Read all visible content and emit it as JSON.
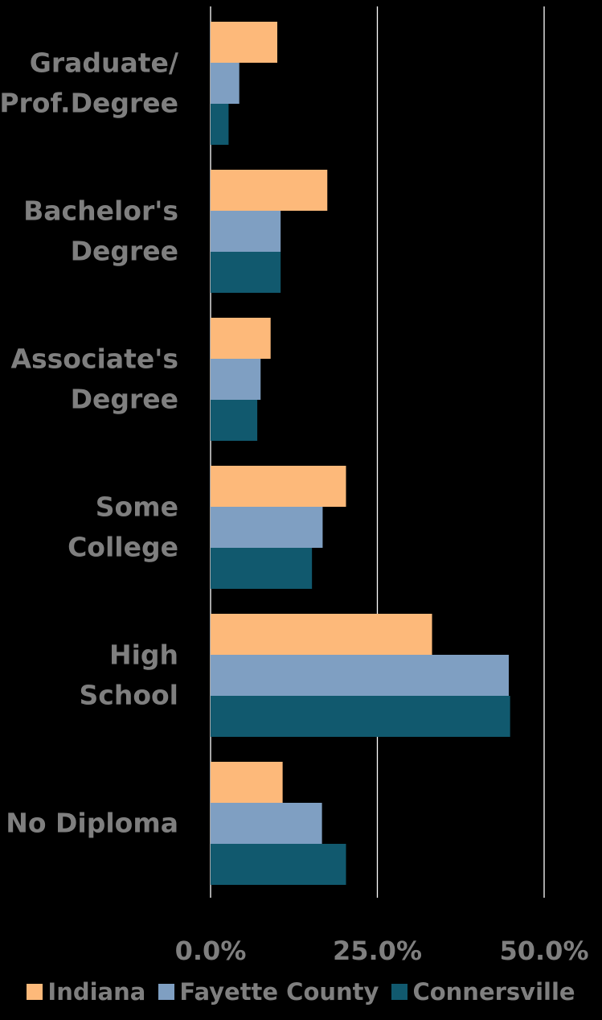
{
  "chart_data": {
    "type": "bar",
    "orientation": "horizontal",
    "categories": [
      [
        "Graduate/",
        "Prof.Degree"
      ],
      [
        "Bachelor's",
        "Degree"
      ],
      [
        "Associate's",
        "Degree"
      ],
      [
        "Some",
        "College"
      ],
      [
        "High",
        "School"
      ],
      [
        "No Diploma"
      ]
    ],
    "series": [
      {
        "name": "Indiana",
        "color": "#FDB97A",
        "values": [
          10.0,
          17.5,
          9.0,
          20.3,
          33.2,
          10.8
        ]
      },
      {
        "name": "Fayette County",
        "color": "#7F9FC2",
        "values": [
          4.3,
          10.5,
          7.5,
          16.8,
          44.7,
          16.7
        ]
      },
      {
        "name": "Connersville",
        "color": "#11596E",
        "values": [
          2.7,
          10.5,
          7.0,
          15.2,
          44.9,
          20.3
        ]
      }
    ],
    "xlim": [
      0,
      50
    ],
    "xticks": [
      0,
      25,
      50
    ],
    "xtick_labels": [
      "0.0%",
      "25.0%",
      "50.0%"
    ],
    "grid": true,
    "legend_position": "bottom"
  }
}
